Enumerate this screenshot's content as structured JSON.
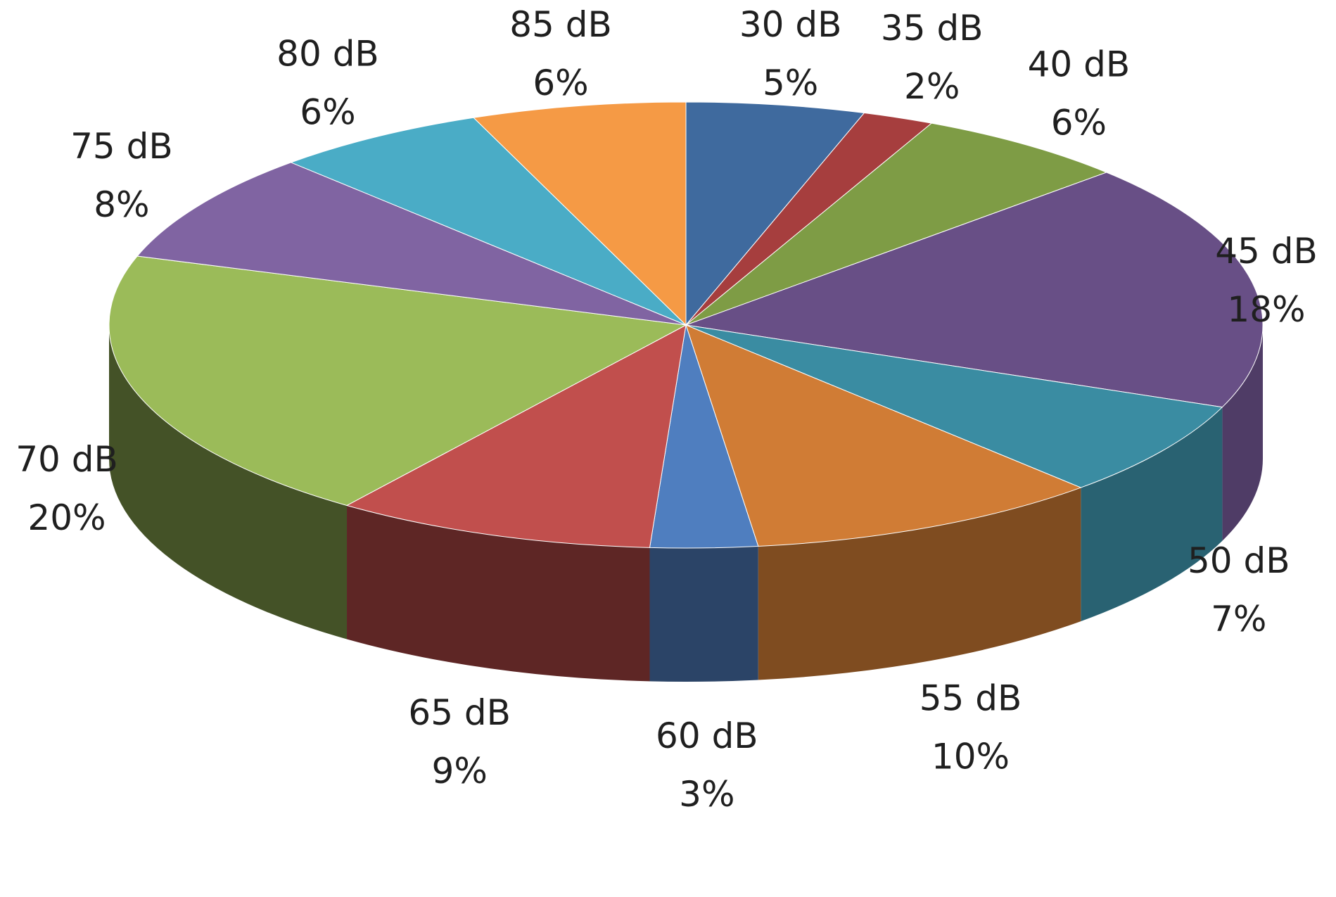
{
  "chart_data": {
    "type": "pie",
    "title": "",
    "categories": [
      "30 dB",
      "35 dB",
      "40 dB",
      "45 dB",
      "50 dB",
      "55 dB",
      "60 dB",
      "65 dB",
      "70 dB",
      "75 dB",
      "80 dB",
      "85 dB"
    ],
    "values": [
      5,
      2,
      6,
      18,
      7,
      10,
      3,
      9,
      20,
      8,
      6,
      6
    ],
    "value_labels": [
      "5%",
      "2%",
      "6%",
      "18%",
      "7%",
      "10%",
      "3%",
      "9%",
      "20%",
      "8%",
      "6%",
      "6%"
    ],
    "colors": [
      "#3F6A9E",
      "#A63E3E",
      "#7E9C45",
      "#684F86",
      "#3A8CA2",
      "#D07C35",
      "#4F7EBF",
      "#C14F4D",
      "#9BBB59",
      "#8064A2",
      "#4AACC6",
      "#F59A45"
    ],
    "legend": "none",
    "style": "3d"
  }
}
